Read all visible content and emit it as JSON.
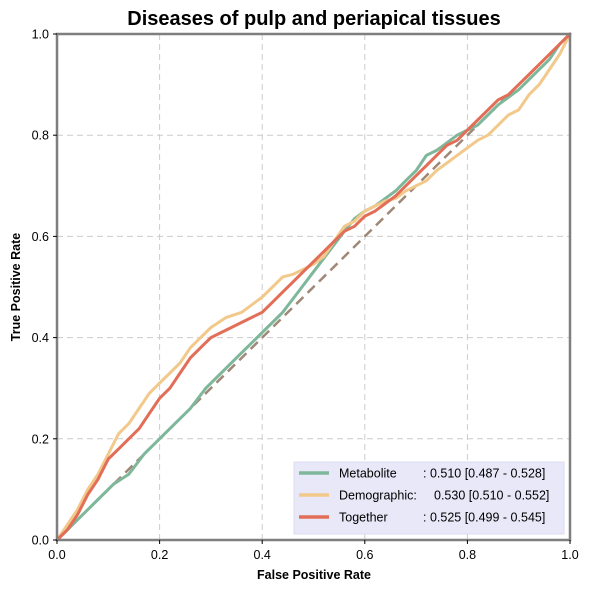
{
  "chart_data": {
    "type": "line",
    "title": "Diseases of pulp and periapical tissues",
    "xlabel": "False Positive Rate",
    "ylabel": "True Positive Rate",
    "xlim": [
      0.0,
      1.0
    ],
    "ylim": [
      0.0,
      1.0
    ],
    "xticks": [
      "0.0",
      "0.2",
      "0.4",
      "0.6",
      "0.8",
      "1.0"
    ],
    "yticks": [
      "0.0",
      "0.2",
      "0.4",
      "0.6",
      "0.8",
      "1.0"
    ],
    "grid": true,
    "legend_position": "bottom-right",
    "diagonal": {
      "x": [
        0,
        1
      ],
      "y": [
        0,
        1
      ],
      "color": "#a08878",
      "style": "dashed"
    },
    "series": [
      {
        "name": "Metabolite",
        "auc_text": ": 0.510 [0.487 - 0.528]",
        "color": "#7fb79b",
        "x": [
          0,
          0.02,
          0.05,
          0.08,
          0.11,
          0.14,
          0.17,
          0.2,
          0.23,
          0.26,
          0.29,
          0.32,
          0.35,
          0.38,
          0.41,
          0.44,
          0.47,
          0.5,
          0.53,
          0.56,
          0.58,
          0.6,
          0.62,
          0.64,
          0.66,
          0.68,
          0.7,
          0.72,
          0.74,
          0.76,
          0.78,
          0.8,
          0.82,
          0.84,
          0.86,
          0.88,
          0.9,
          0.92,
          0.94,
          0.96,
          0.98,
          1.0
        ],
        "y": [
          0,
          0.02,
          0.05,
          0.08,
          0.11,
          0.13,
          0.17,
          0.2,
          0.23,
          0.26,
          0.3,
          0.33,
          0.36,
          0.39,
          0.42,
          0.45,
          0.49,
          0.53,
          0.57,
          0.61,
          0.635,
          0.65,
          0.66,
          0.675,
          0.69,
          0.71,
          0.73,
          0.76,
          0.77,
          0.785,
          0.8,
          0.81,
          0.82,
          0.84,
          0.86,
          0.875,
          0.89,
          0.91,
          0.93,
          0.95,
          0.98,
          1.0
        ]
      },
      {
        "name": "Demographic:",
        "auc_text": "0.530 [0.510 - 0.552]",
        "color": "#f2c98a",
        "x": [
          0,
          0.02,
          0.04,
          0.06,
          0.08,
          0.1,
          0.12,
          0.14,
          0.16,
          0.18,
          0.2,
          0.22,
          0.24,
          0.26,
          0.28,
          0.3,
          0.33,
          0.36,
          0.4,
          0.42,
          0.44,
          0.46,
          0.48,
          0.5,
          0.52,
          0.54,
          0.56,
          0.58,
          0.6,
          0.62,
          0.64,
          0.66,
          0.68,
          0.7,
          0.72,
          0.74,
          0.76,
          0.78,
          0.8,
          0.82,
          0.84,
          0.86,
          0.88,
          0.9,
          0.92,
          0.94,
          0.96,
          0.98,
          1.0
        ],
        "y": [
          0,
          0.03,
          0.06,
          0.1,
          0.13,
          0.17,
          0.21,
          0.23,
          0.26,
          0.29,
          0.31,
          0.33,
          0.35,
          0.38,
          0.4,
          0.42,
          0.44,
          0.45,
          0.48,
          0.5,
          0.52,
          0.525,
          0.535,
          0.545,
          0.56,
          0.59,
          0.62,
          0.63,
          0.65,
          0.66,
          0.67,
          0.675,
          0.69,
          0.7,
          0.71,
          0.73,
          0.745,
          0.76,
          0.775,
          0.79,
          0.8,
          0.82,
          0.84,
          0.85,
          0.88,
          0.9,
          0.93,
          0.96,
          1.0
        ]
      },
      {
        "name": "Together",
        "auc_text": ": 0.525 [0.499 - 0.545]",
        "color": "#e36e57",
        "x": [
          0,
          0.02,
          0.04,
          0.06,
          0.08,
          0.1,
          0.12,
          0.14,
          0.16,
          0.18,
          0.2,
          0.22,
          0.24,
          0.26,
          0.28,
          0.3,
          0.32,
          0.34,
          0.36,
          0.38,
          0.4,
          0.42,
          0.44,
          0.46,
          0.48,
          0.5,
          0.52,
          0.54,
          0.56,
          0.58,
          0.6,
          0.62,
          0.64,
          0.66,
          0.68,
          0.7,
          0.72,
          0.74,
          0.76,
          0.78,
          0.8,
          0.82,
          0.84,
          0.86,
          0.88,
          0.9,
          0.92,
          0.94,
          0.96,
          0.98,
          1.0
        ],
        "y": [
          0,
          0.02,
          0.05,
          0.09,
          0.12,
          0.16,
          0.18,
          0.2,
          0.22,
          0.25,
          0.28,
          0.3,
          0.33,
          0.36,
          0.38,
          0.4,
          0.41,
          0.42,
          0.43,
          0.44,
          0.45,
          0.47,
          0.49,
          0.51,
          0.53,
          0.55,
          0.57,
          0.59,
          0.61,
          0.62,
          0.64,
          0.65,
          0.665,
          0.68,
          0.7,
          0.72,
          0.74,
          0.76,
          0.78,
          0.79,
          0.81,
          0.83,
          0.85,
          0.87,
          0.88,
          0.9,
          0.92,
          0.94,
          0.96,
          0.98,
          1.0
        ]
      }
    ],
    "legend_background": "#e8e8f8",
    "frame_color": "#7f7f7f",
    "grid_color": "#cccccc"
  }
}
